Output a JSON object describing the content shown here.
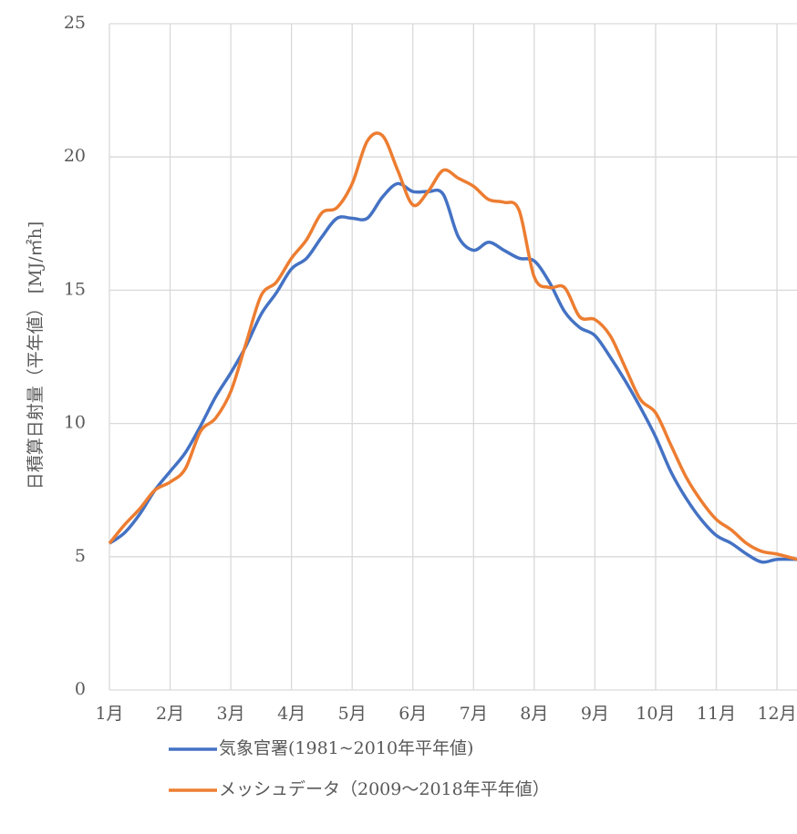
{
  "chart_data": {
    "type": "line",
    "y_label": "日積算日射量（平年値） [MJ/㎡h]",
    "x": [
      1,
      1.25,
      1.5,
      1.75,
      2,
      2.25,
      2.5,
      2.75,
      3,
      3.25,
      3.5,
      3.75,
      4,
      4.25,
      4.5,
      4.75,
      5,
      5.25,
      5.5,
      5.75,
      6,
      6.25,
      6.5,
      6.75,
      7,
      7.25,
      7.5,
      7.75,
      8,
      8.25,
      8.5,
      8.75,
      9,
      9.25,
      9.5,
      9.75,
      10,
      10.25,
      10.5,
      10.75,
      11,
      11.25,
      11.5,
      11.75,
      12,
      12.33
    ],
    "series": [
      {
        "name": "気象官署(1981~2010年平年値)",
        "color": "#4472c4",
        "values": [
          5.5,
          5.9,
          6.6,
          7.5,
          8.2,
          8.9,
          9.9,
          11.0,
          11.9,
          12.9,
          14.1,
          14.9,
          15.8,
          16.2,
          17.0,
          17.7,
          17.7,
          17.7,
          18.5,
          19.0,
          18.7,
          18.7,
          18.6,
          17.0,
          16.5,
          16.8,
          16.5,
          16.2,
          16.1,
          15.3,
          14.2,
          13.6,
          13.3,
          12.5,
          11.6,
          10.6,
          9.5,
          8.2,
          7.2,
          6.4,
          5.8,
          5.5,
          5.1,
          4.8,
          4.9,
          4.9
        ]
      },
      {
        "name": "メッシュデータ（2009～2018年平年値）",
        "color": "#ed7d31",
        "values": [
          5.5,
          6.2,
          6.8,
          7.5,
          7.8,
          8.3,
          9.7,
          10.2,
          11.2,
          13.0,
          14.8,
          15.3,
          16.2,
          16.9,
          17.9,
          18.1,
          19.0,
          20.6,
          20.8,
          19.5,
          18.2,
          18.7,
          19.5,
          19.2,
          18.9,
          18.4,
          18.3,
          18.0,
          15.5,
          15.1,
          15.1,
          14.0,
          13.9,
          13.3,
          12.1,
          10.9,
          10.4,
          9.2,
          8.0,
          7.1,
          6.4,
          6.0,
          5.5,
          5.2,
          5.1,
          4.9
        ]
      }
    ],
    "xlim": [
      1,
      12.33
    ],
    "xticks": [
      {
        "value": 1,
        "label": "1月"
      },
      {
        "value": 2,
        "label": "2月"
      },
      {
        "value": 3,
        "label": "3月"
      },
      {
        "value": 4,
        "label": "4月"
      },
      {
        "value": 5,
        "label": "5月"
      },
      {
        "value": 6,
        "label": "6月"
      },
      {
        "value": 7,
        "label": "7月"
      },
      {
        "value": 8,
        "label": "8月"
      },
      {
        "value": 9,
        "label": "9月"
      },
      {
        "value": 10,
        "label": "10月"
      },
      {
        "value": 11,
        "label": "11月"
      },
      {
        "value": 12,
        "label": "12月"
      }
    ],
    "ylim": [
      0,
      25
    ],
    "yticks": [
      0,
      5,
      10,
      15,
      20,
      25
    ],
    "grid": true
  }
}
